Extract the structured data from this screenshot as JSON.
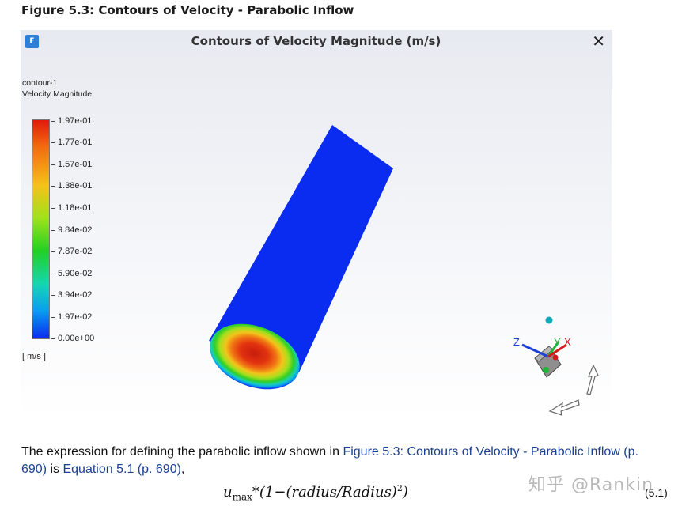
{
  "figure_title": "Figure 5.3: Contours of Velocity - Parabolic Inflow",
  "viewer": {
    "app_icon_letter": "F",
    "title": "Contours of Velocity Magnitude (m/s)",
    "close_symbol": "✕"
  },
  "legend": {
    "contour_name": "contour-1",
    "variable": "Velocity Magnitude",
    "unit": "[ m/s ]",
    "ticks": [
      "1.97e-01",
      "1.77e-01",
      "1.57e-01",
      "1.38e-01",
      "1.18e-01",
      "9.84e-02",
      "7.87e-02",
      "5.90e-02",
      "3.94e-02",
      "1.97e-02",
      "0.00e+00"
    ]
  },
  "axes_triad": {
    "x": "X",
    "y": "Y",
    "z": "Z"
  },
  "text": {
    "para_prefix": "The expression for defining the parabolic inflow shown in ",
    "link1": "Figure 5.3: Contours of Velocity - Parabolic Inflow (p. 690)",
    "para_mid": " is ",
    "link2": "Equation 5.1 (p. 690)",
    "para_suffix": ","
  },
  "equation": {
    "u": "u",
    "sub": "max",
    "body": "*(1−(radius/Radius)",
    "sup": "2",
    "close": ")",
    "number": "(5.1)"
  },
  "watermark": "知乎 @Rankin",
  "colors": {
    "link": "#1b3f93",
    "colormap_top": "#e11a0c",
    "colormap_bottom": "#0a2cf0"
  }
}
